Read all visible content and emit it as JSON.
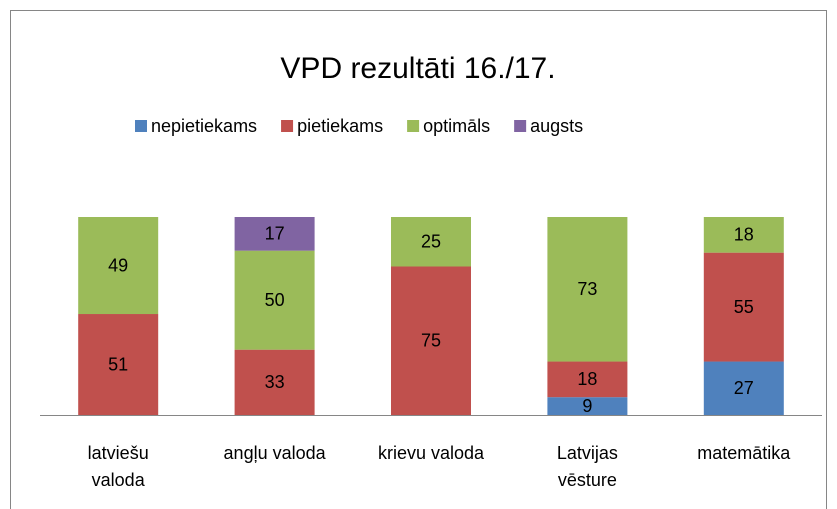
{
  "chart_data": {
    "type": "stacked_bar",
    "title": "VPD rezultāti 16./17.",
    "categories": [
      "latviešu\nvaloda",
      "angļu valoda",
      "krievu valoda",
      "Latvijas\nvēsture",
      "matemātika"
    ],
    "series": [
      {
        "name": "nepietiekams",
        "color": "#4f81bd",
        "values": [
          null,
          null,
          null,
          9,
          27
        ]
      },
      {
        "name": "pietiekams",
        "color": "#c0504d",
        "values": [
          51,
          33,
          75,
          18,
          55
        ]
      },
      {
        "name": "optimāls",
        "color": "#9bbb59",
        "values": [
          49,
          50,
          25,
          73,
          18
        ]
      },
      {
        "name": "augsts",
        "color": "#8064a2",
        "values": [
          null,
          17,
          null,
          null,
          null
        ]
      }
    ],
    "ylim": [
      0,
      100
    ],
    "legend": "top"
  }
}
